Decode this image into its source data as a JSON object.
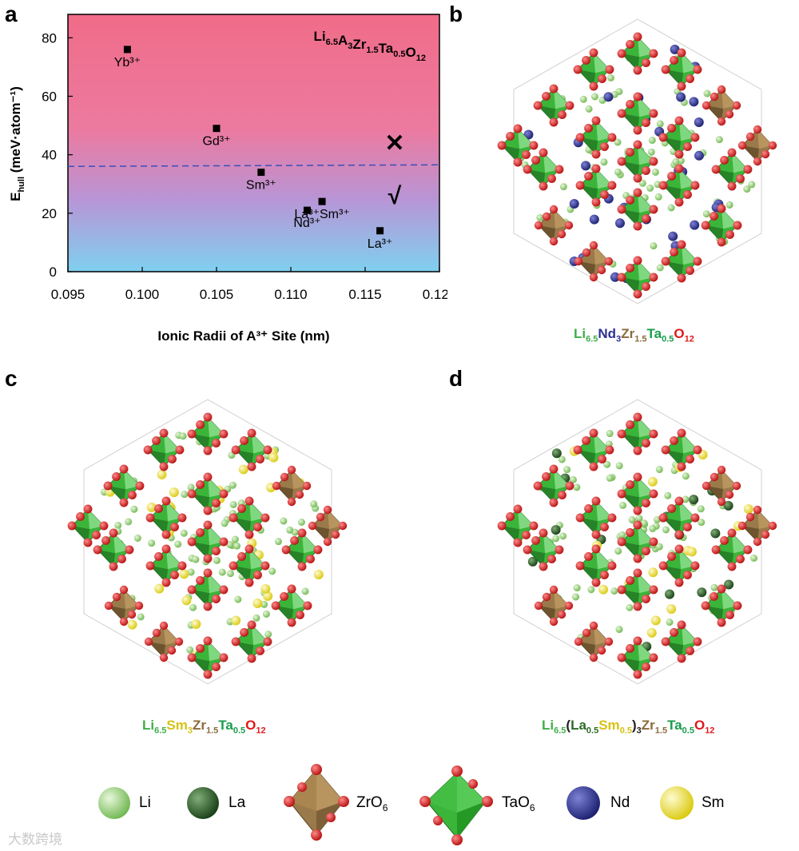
{
  "panels": {
    "a": "a",
    "b": "b",
    "c": "c",
    "d": "d"
  },
  "chart_data": {
    "type": "scatter",
    "title": "Li6.5A3Zr1.5Ta0.5O12",
    "title_parts": [
      {
        "t": "Li"
      },
      {
        "t": "6.5",
        "sub": true
      },
      {
        "t": "A"
      },
      {
        "t": "3",
        "sub": true
      },
      {
        "t": "Zr"
      },
      {
        "t": "1.5",
        "sub": true
      },
      {
        "t": "Ta"
      },
      {
        "t": "0.5",
        "sub": true
      },
      {
        "t": "O"
      },
      {
        "t": "12",
        "sub": true
      }
    ],
    "xlabel": "Ionic Radii of A³⁺ Site (nm)",
    "ylabel": "Ehull (meV·atom⁻¹)",
    "ylabel_main": "E",
    "ylabel_sub": "hull",
    "ylabel_unit": " (meV·atom⁻¹)",
    "xlim": [
      0.095,
      0.12
    ],
    "ylim": [
      0,
      88
    ],
    "xticks": [
      0.095,
      0.1,
      0.105,
      0.11,
      0.115,
      0.12
    ],
    "xtick_labels": [
      "0.095",
      "0.100",
      "0.105",
      "0.110",
      "0.115",
      "0.120"
    ],
    "yticks": [
      0,
      20,
      40,
      60,
      80
    ],
    "ytick_labels": [
      "0",
      "20",
      "40",
      "60",
      "80"
    ],
    "threshold": 36,
    "points": [
      {
        "x": 0.099,
        "y": 76,
        "label": "Yb³⁺"
      },
      {
        "x": 0.105,
        "y": 49,
        "label": "Gd³⁺"
      },
      {
        "x": 0.108,
        "y": 34,
        "label": "Sm³⁺"
      },
      {
        "x": 0.1111,
        "y": 21,
        "label": "Nd³⁺"
      },
      {
        "x": 0.1121,
        "y": 24,
        "label": "La³⁺Sm³⁺"
      },
      {
        "x": 0.116,
        "y": 14,
        "label": "La³⁺"
      }
    ],
    "unstable_mark": "✕",
    "stable_mark": "√",
    "background_gradient": [
      "#f06c88",
      "#ec7aa0",
      "#b895d6",
      "#7fd0ef"
    ]
  },
  "formulas": {
    "b": [
      {
        "t": "Li",
        "c": "#3fae49"
      },
      {
        "t": "6.5",
        "c": "#3fae49",
        "sub": true
      },
      {
        "t": "Nd",
        "c": "#2f3192"
      },
      {
        "t": "3",
        "c": "#2f3192",
        "sub": true
      },
      {
        "t": "Zr",
        "c": "#8a6b3c"
      },
      {
        "t": "1.5",
        "c": "#8a6b3c",
        "sub": true
      },
      {
        "t": "Ta",
        "c": "#1a9c4d"
      },
      {
        "t": "0.5",
        "c": "#1a9c4d",
        "sub": true
      },
      {
        "t": "O",
        "c": "#e0181b"
      },
      {
        "t": "12",
        "c": "#e0181b",
        "sub": true
      }
    ],
    "c": [
      {
        "t": "Li",
        "c": "#3fae49"
      },
      {
        "t": "6.5",
        "c": "#3fae49",
        "sub": true
      },
      {
        "t": "Sm",
        "c": "#d6c214"
      },
      {
        "t": "3",
        "c": "#d6c214",
        "sub": true
      },
      {
        "t": "Zr",
        "c": "#8a6b3c"
      },
      {
        "t": "1.5",
        "c": "#8a6b3c",
        "sub": true
      },
      {
        "t": "Ta",
        "c": "#1a9c4d"
      },
      {
        "t": "0.5",
        "c": "#1a9c4d",
        "sub": true
      },
      {
        "t": "O",
        "c": "#e0181b"
      },
      {
        "t": "12",
        "c": "#e0181b",
        "sub": true
      }
    ],
    "d": [
      {
        "t": "Li",
        "c": "#3fae49"
      },
      {
        "t": "6.5",
        "c": "#3fae49",
        "sub": true
      },
      {
        "t": "(",
        "c": "#222222"
      },
      {
        "t": "La",
        "c": "#2d6b26"
      },
      {
        "t": "0.5",
        "c": "#2d6b26",
        "sub": true
      },
      {
        "t": "Sm",
        "c": "#d6c214"
      },
      {
        "t": "0.5",
        "c": "#d6c214",
        "sub": true
      },
      {
        "t": ")",
        "c": "#222222"
      },
      {
        "t": "3",
        "c": "#222222",
        "sub": true
      },
      {
        "t": "Zr",
        "c": "#8a6b3c"
      },
      {
        "t": "1.5",
        "c": "#8a6b3c",
        "sub": true
      },
      {
        "t": "Ta",
        "c": "#1a9c4d"
      },
      {
        "t": "0.5",
        "c": "#1a9c4d",
        "sub": true
      },
      {
        "t": "O",
        "c": "#e0181b"
      },
      {
        "t": "12",
        "c": "#e0181b",
        "sub": true
      }
    ]
  },
  "legend": {
    "li": "Li",
    "la": "La",
    "zro6": [
      {
        "t": "ZrO"
      },
      {
        "t": "6",
        "sub": true
      }
    ],
    "tao6": [
      {
        "t": "TaO"
      },
      {
        "t": "6",
        "sub": true
      }
    ],
    "nd": "Nd",
    "sm": "Sm"
  },
  "colors": {
    "li": "#9bd67e",
    "la": "#2d6b26",
    "nd": "#2f3192",
    "sm": "#f2e422",
    "o": "#d81c1c",
    "ta_face": "#3ab53a",
    "zr_face": "#9a7a4a"
  },
  "watermark": "大数跨境"
}
